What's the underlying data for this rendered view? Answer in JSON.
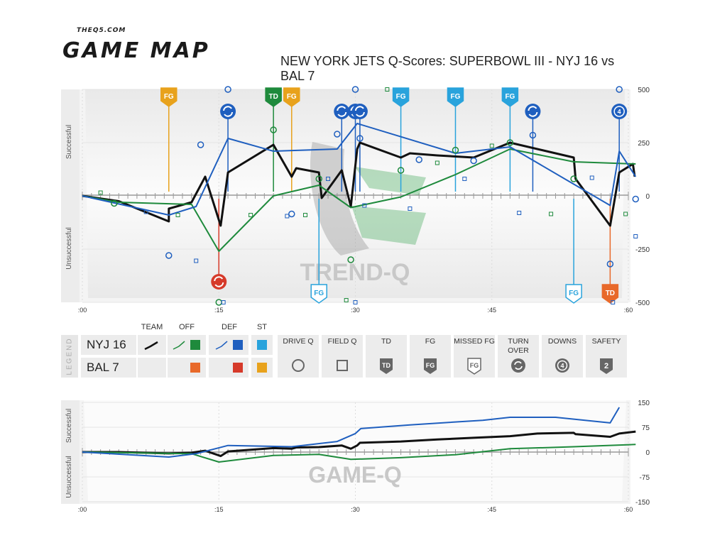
{
  "brand": {
    "site": "THEQ5.COM",
    "name": "GAME MAP"
  },
  "title": "NEW YORK JETS Q-Scores: SUPERBOWL III - NYJ 16 vs BAL 7",
  "colors": {
    "team": "#111111",
    "nyj_off": "#1e8a3c",
    "nyj_def": "#1f5fbf",
    "nyj_st": "#29a3dc",
    "bal_off": "#e8692a",
    "bal_def": "#d63a2a",
    "bal_st": "#e8a21c",
    "watermark_green": "#3aa552",
    "grid_gray": "#dddddd"
  },
  "game_map": {
    "y_ticks": [
      "500",
      "250",
      "0",
      "-250",
      "-500"
    ],
    "x_ticks": [
      ":00",
      ":15",
      ":30",
      ":45",
      ":60"
    ],
    "y_label_top": "Successful",
    "y_label_bottom": "Unsuccessful",
    "watermark": "TREND-Q"
  },
  "game_q": {
    "y_ticks": [
      "150",
      "75",
      "0",
      "-75",
      "-150"
    ],
    "x_ticks": [
      ":00",
      ":15",
      ":30",
      ":45",
      ":60"
    ],
    "y_label_top": "Successful",
    "y_label_bottom": "Unsuccessful",
    "watermark": "GAME-Q"
  },
  "legend": {
    "side_label": "LEGEND",
    "teams": [
      "NYJ 16",
      "BAL 7"
    ],
    "columns": {
      "team": "TEAM",
      "off": "OFF",
      "def": "DEF",
      "st": "ST"
    },
    "events": [
      {
        "label": "DRIVE Q",
        "icon": "circle-icon"
      },
      {
        "label": "FIELD Q",
        "icon": "square-icon"
      },
      {
        "label": "TD",
        "icon": "td-badge-icon",
        "text": "TD"
      },
      {
        "label": "FG",
        "icon": "fg-badge-icon",
        "text": "FG"
      },
      {
        "label": "MISSED FG",
        "icon": "missed-fg-badge-icon",
        "text": "FG"
      },
      {
        "label": "TURN OVER",
        "icon": "turnover-icon"
      },
      {
        "label": "DOWNS",
        "icon": "downs-icon",
        "text": "4"
      },
      {
        "label": "SAFETY",
        "icon": "safety-badge-icon",
        "text": "2"
      }
    ]
  },
  "chart_data": [
    {
      "type": "line",
      "x_domain": [
        0,
        60
      ],
      "ylim": [
        -500,
        500
      ],
      "series": [
        {
          "name": "NYJ 16",
          "group": "TEAM",
          "color": "#111111",
          "points": [
            [
              0,
              0
            ],
            [
              4,
              -25
            ],
            [
              9.5,
              -120
            ],
            [
              9.5,
              -60
            ],
            [
              12,
              -30
            ],
            [
              13.5,
              90
            ],
            [
              15.2,
              -140
            ],
            [
              16,
              110
            ],
            [
              21,
              240
            ],
            [
              23,
              90
            ],
            [
              23.5,
              130
            ],
            [
              26,
              110
            ],
            [
              26.3,
              -10
            ],
            [
              28.5,
              120
            ],
            [
              29.5,
              -50
            ],
            [
              30.2,
              220
            ],
            [
              30.5,
              250
            ],
            [
              35,
              180
            ],
            [
              36,
              200
            ],
            [
              39,
              190
            ],
            [
              43,
              180
            ],
            [
              47,
              250
            ],
            [
              54,
              180
            ],
            [
              54.2,
              80
            ],
            [
              58,
              -140
            ],
            [
              59,
              110
            ],
            [
              60.5,
              150
            ],
            [
              60.7,
              90
            ]
          ]
        },
        {
          "name": "NYJ 16",
          "group": "OFF",
          "color": "#1e8a3c",
          "points": [
            [
              0,
              0
            ],
            [
              4,
              -30
            ],
            [
              12,
              -40
            ],
            [
              15,
              -260
            ],
            [
              21,
              0
            ],
            [
              26,
              50
            ],
            [
              29.5,
              -55
            ],
            [
              35,
              -5
            ],
            [
              41,
              100
            ],
            [
              47,
              220
            ],
            [
              54,
              160
            ],
            [
              60.8,
              150
            ]
          ]
        },
        {
          "name": "NYJ 16",
          "group": "DEF",
          "color": "#1f5fbf",
          "points": [
            [
              0,
              0
            ],
            [
              9.5,
              -90
            ],
            [
              12.5,
              -50
            ],
            [
              16,
              270
            ],
            [
              21,
              210
            ],
            [
              28,
              220
            ],
            [
              30.2,
              340
            ],
            [
              41,
              200
            ],
            [
              47,
              230
            ],
            [
              58,
              -45
            ],
            [
              59,
              210
            ],
            [
              60.8,
              90
            ]
          ]
        }
      ],
      "events": [
        {
          "type": "FG",
          "team": "BAL",
          "x": 9.5
        },
        {
          "type": "TURN OVER",
          "team": "BAL",
          "x": 15
        },
        {
          "type": "TURN OVER",
          "team": "NYJ",
          "x": 16
        },
        {
          "type": "TD",
          "team": "NYJ",
          "x": 21
        },
        {
          "type": "FG",
          "team": "BAL",
          "x": 23
        },
        {
          "type": "MISSED FG",
          "team": "NYJ",
          "x": 26
        },
        {
          "type": "TURN OVER",
          "team": "NYJ",
          "x": 28.5
        },
        {
          "type": "TURN OVER",
          "team": "NYJ",
          "x": 30
        },
        {
          "type": "TURN OVER",
          "team": "NYJ",
          "x": 30.5
        },
        {
          "type": "FG",
          "team": "NYJ",
          "x": 35
        },
        {
          "type": "FG",
          "team": "NYJ",
          "x": 41
        },
        {
          "type": "FG",
          "team": "NYJ",
          "x": 47
        },
        {
          "type": "TURN OVER",
          "team": "NYJ",
          "x": 49.5
        },
        {
          "type": "MISSED FG",
          "team": "NYJ",
          "x": 54
        },
        {
          "type": "TD",
          "team": "BAL",
          "x": 58
        },
        {
          "type": "DOWNS",
          "team": "NYJ",
          "x": 59
        }
      ]
    },
    {
      "type": "line",
      "x_domain": [
        0,
        60
      ],
      "ylim": [
        -150,
        150
      ],
      "series": [
        {
          "name": "NYJ 16",
          "group": "TEAM",
          "color": "#111111",
          "points": [
            [
              0,
              0
            ],
            [
              4,
              0
            ],
            [
              9.5,
              -4
            ],
            [
              12,
              -2
            ],
            [
              13.5,
              4
            ],
            [
              15.2,
              -12
            ],
            [
              16,
              2
            ],
            [
              21,
              12
            ],
            [
              23,
              10
            ],
            [
              23.5,
              14
            ],
            [
              26,
              15
            ],
            [
              28.5,
              20
            ],
            [
              29.5,
              10
            ],
            [
              30.2,
              20
            ],
            [
              30.5,
              28
            ],
            [
              35,
              32
            ],
            [
              39,
              38
            ],
            [
              43,
              43
            ],
            [
              47,
              48
            ],
            [
              50,
              56
            ],
            [
              54,
              58
            ],
            [
              54.2,
              54
            ],
            [
              58,
              46
            ],
            [
              59,
              56
            ],
            [
              60.8,
              62
            ]
          ]
        },
        {
          "name": "NYJ 16",
          "group": "OFF",
          "color": "#1e8a3c",
          "points": [
            [
              0,
              0
            ],
            [
              9.5,
              -4
            ],
            [
              12,
              -5
            ],
            [
              15,
              -30
            ],
            [
              21,
              -10
            ],
            [
              26,
              -7
            ],
            [
              29.5,
              -22
            ],
            [
              35,
              -17
            ],
            [
              41,
              -8
            ],
            [
              47,
              10
            ],
            [
              54,
              16
            ],
            [
              60.8,
              23
            ]
          ]
        },
        {
          "name": "NYJ 16",
          "group": "DEF",
          "color": "#1f5fbf",
          "points": [
            [
              0,
              0
            ],
            [
              9.5,
              -15
            ],
            [
              12.5,
              -5
            ],
            [
              16,
              20
            ],
            [
              23,
              16
            ],
            [
              28,
              32
            ],
            [
              30,
              56
            ],
            [
              30.6,
              71
            ],
            [
              36,
              82
            ],
            [
              44,
              96
            ],
            [
              47,
              105
            ],
            [
              52,
              105
            ],
            [
              58,
              88
            ],
            [
              59,
              135
            ]
          ]
        }
      ]
    }
  ]
}
